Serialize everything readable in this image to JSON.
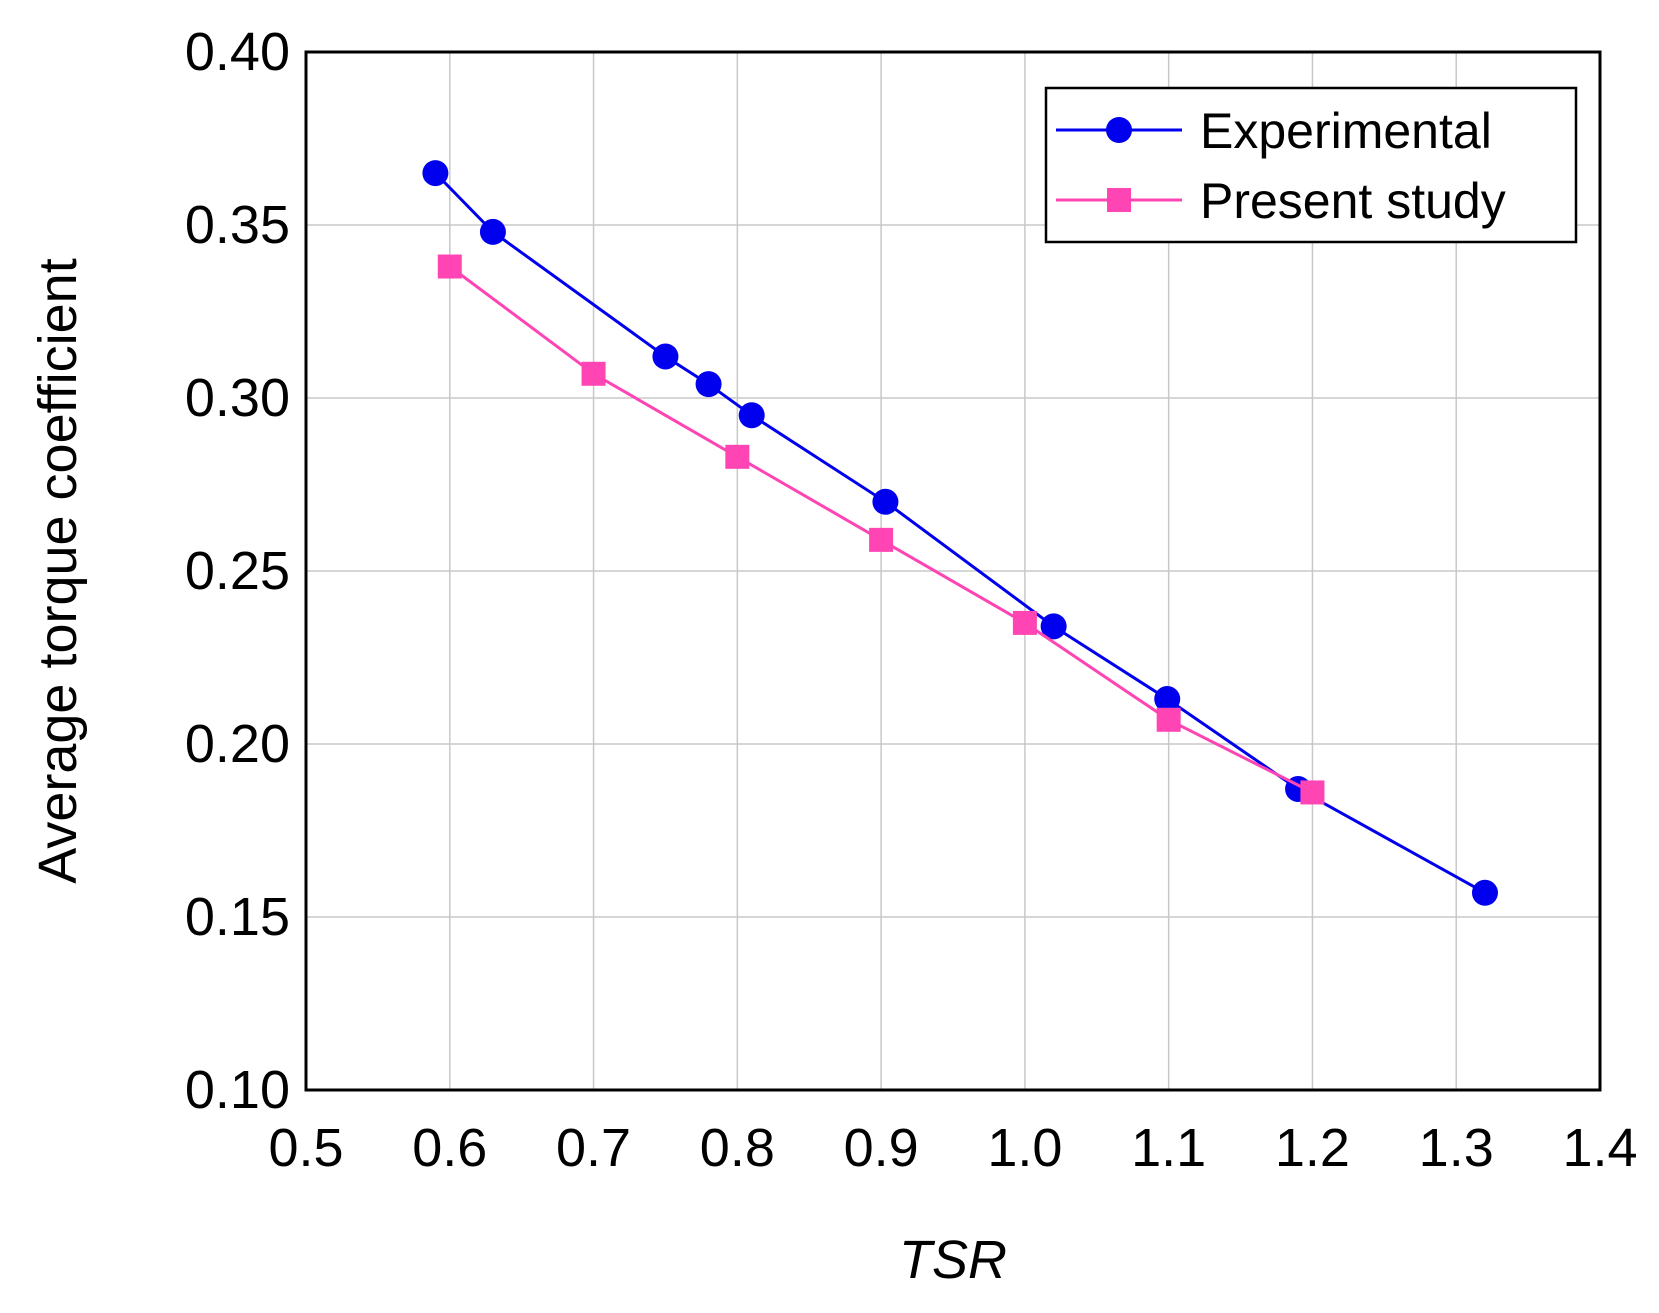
{
  "chart_data": {
    "type": "line",
    "title": "",
    "xlabel": "TSR",
    "ylabel": "Average torque coefficient",
    "xlim": [
      0.5,
      1.4
    ],
    "ylim": [
      0.1,
      0.4
    ],
    "x_ticks": [
      "0.5",
      "0.6",
      "0.7",
      "0.8",
      "0.9",
      "1.0",
      "1.1",
      "1.2",
      "1.3",
      "1.4"
    ],
    "y_ticks": [
      "0.10",
      "0.15",
      "0.20",
      "0.25",
      "0.30",
      "0.35",
      "0.40"
    ],
    "grid": true,
    "legend_position": "top-right",
    "series": [
      {
        "name": "Experimental",
        "color": "#0000ee",
        "marker": "circle",
        "x": [
          0.59,
          0.63,
          0.75,
          0.78,
          0.81,
          0.903,
          1.02,
          1.099,
          1.19,
          1.32
        ],
        "y": [
          0.365,
          0.348,
          0.312,
          0.304,
          0.295,
          0.27,
          0.234,
          0.213,
          0.187,
          0.157
        ]
      },
      {
        "name": "Present study",
        "color": "#ff44b4",
        "marker": "square",
        "x": [
          0.6,
          0.7,
          0.8,
          0.9,
          1.0,
          1.1,
          1.2
        ],
        "y": [
          0.338,
          0.307,
          0.283,
          0.259,
          0.235,
          0.207,
          0.186
        ]
      }
    ]
  }
}
